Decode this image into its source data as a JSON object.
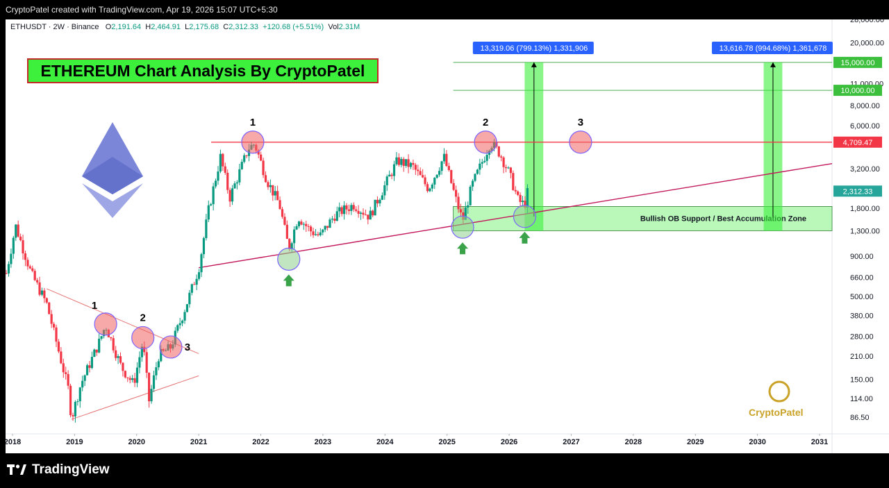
{
  "header": {
    "attribution": "CryptoPatel created with TradingView.com, Apr 19, 2026 15:07 UTC+5:30"
  },
  "legend": {
    "symbol": "ETHUSDT · 2W · Binance",
    "open_label": "O",
    "open": "2,191.64",
    "high_label": "H",
    "high": "2,464.91",
    "low_label": "L",
    "low": "2,175.68",
    "close_label": "C",
    "close": "2,312.33",
    "change": "+120.68 (+5.51%)",
    "vol_label": "Vol",
    "vol": "2.31M"
  },
  "title_box": "ETHEREUM Chart Analysis By CryptoPatel",
  "footer": {
    "brand": "TradingView"
  },
  "watermark": {
    "text": "CryptoPatel"
  },
  "colors": {
    "up": "#089981",
    "down": "#f23645",
    "resistance": "#f23645",
    "trendline": "#c2185b",
    "zone": "#7ff27f",
    "target_label_bg": "#2962ff"
  },
  "chart_data": {
    "type": "candlestick",
    "symbol": "ETHUSDT",
    "interval": "2W",
    "exchange": "Binance",
    "y_scale": "log",
    "ylim": [
      68,
      28000
    ],
    "xlim": [
      2017.85,
      2031.2
    ],
    "x_ticks": [
      "2018",
      "2019",
      "2020",
      "2021",
      "2022",
      "2023",
      "2024",
      "2025",
      "2026",
      "2027",
      "2028",
      "2029",
      "2030",
      "2031"
    ],
    "y_ticks": [
      "28,000.00",
      "20,000.00",
      "11,000.00",
      "8,000.00",
      "6,000.00",
      "3,200.00",
      "1,800.00",
      "1,300.00",
      "900.00",
      "660.00",
      "500.00",
      "380.00",
      "280.00",
      "210.00",
      "150.00",
      "114.00",
      "86.50"
    ],
    "price_path": [
      [
        2017.9,
        700
      ],
      [
        2018.05,
        1400
      ],
      [
        2018.3,
        700
      ],
      [
        2018.55,
        450
      ],
      [
        2018.9,
        130
      ],
      [
        2018.95,
        85
      ],
      [
        2019.1,
        140
      ],
      [
        2019.4,
        260
      ],
      [
        2019.5,
        330
      ],
      [
        2019.75,
        180
      ],
      [
        2019.95,
        140
      ],
      [
        2020.1,
        260
      ],
      [
        2020.2,
        110
      ],
      [
        2020.35,
        210
      ],
      [
        2020.55,
        240
      ],
      [
        2020.75,
        390
      ],
      [
        2021.0,
        750
      ],
      [
        2021.15,
        1700
      ],
      [
        2021.35,
        3800
      ],
      [
        2021.5,
        2100
      ],
      [
        2021.8,
        4300
      ],
      [
        2021.9,
        4600
      ],
      [
        2022.1,
        2700
      ],
      [
        2022.3,
        1900
      ],
      [
        2022.45,
        1000
      ],
      [
        2022.6,
        1600
      ],
      [
        2022.8,
        1300
      ],
      [
        2022.95,
        1200
      ],
      [
        2023.2,
        1650
      ],
      [
        2023.5,
        1900
      ],
      [
        2023.75,
        1600
      ],
      [
        2023.95,
        2300
      ],
      [
        2024.2,
        3600
      ],
      [
        2024.45,
        3300
      ],
      [
        2024.7,
        2400
      ],
      [
        2024.95,
        3800
      ],
      [
        2025.15,
        2000
      ],
      [
        2025.25,
        1500
      ],
      [
        2025.4,
        2500
      ],
      [
        2025.6,
        3800
      ],
      [
        2025.7,
        4700
      ],
      [
        2025.85,
        4000
      ],
      [
        2026.0,
        3000
      ],
      [
        2026.15,
        2000
      ],
      [
        2026.25,
        1900
      ],
      [
        2026.3,
        2312
      ]
    ],
    "levels": {
      "resistance": "4,709.47",
      "last_price": "2,312.33",
      "target_1": "10,000.00",
      "target_2": "15,000.00"
    },
    "annotations": {
      "zone_label": "Bullish OB Support / Best Accumulation Zone",
      "measure_1": "13,319.06 (799.13%) 1,331,906",
      "measure_2": "13,616.78 (994.68%) 1,361,678",
      "top_labels": [
        "1",
        "2",
        "3"
      ],
      "triangle_labels": [
        "1",
        "2",
        "3"
      ]
    }
  }
}
